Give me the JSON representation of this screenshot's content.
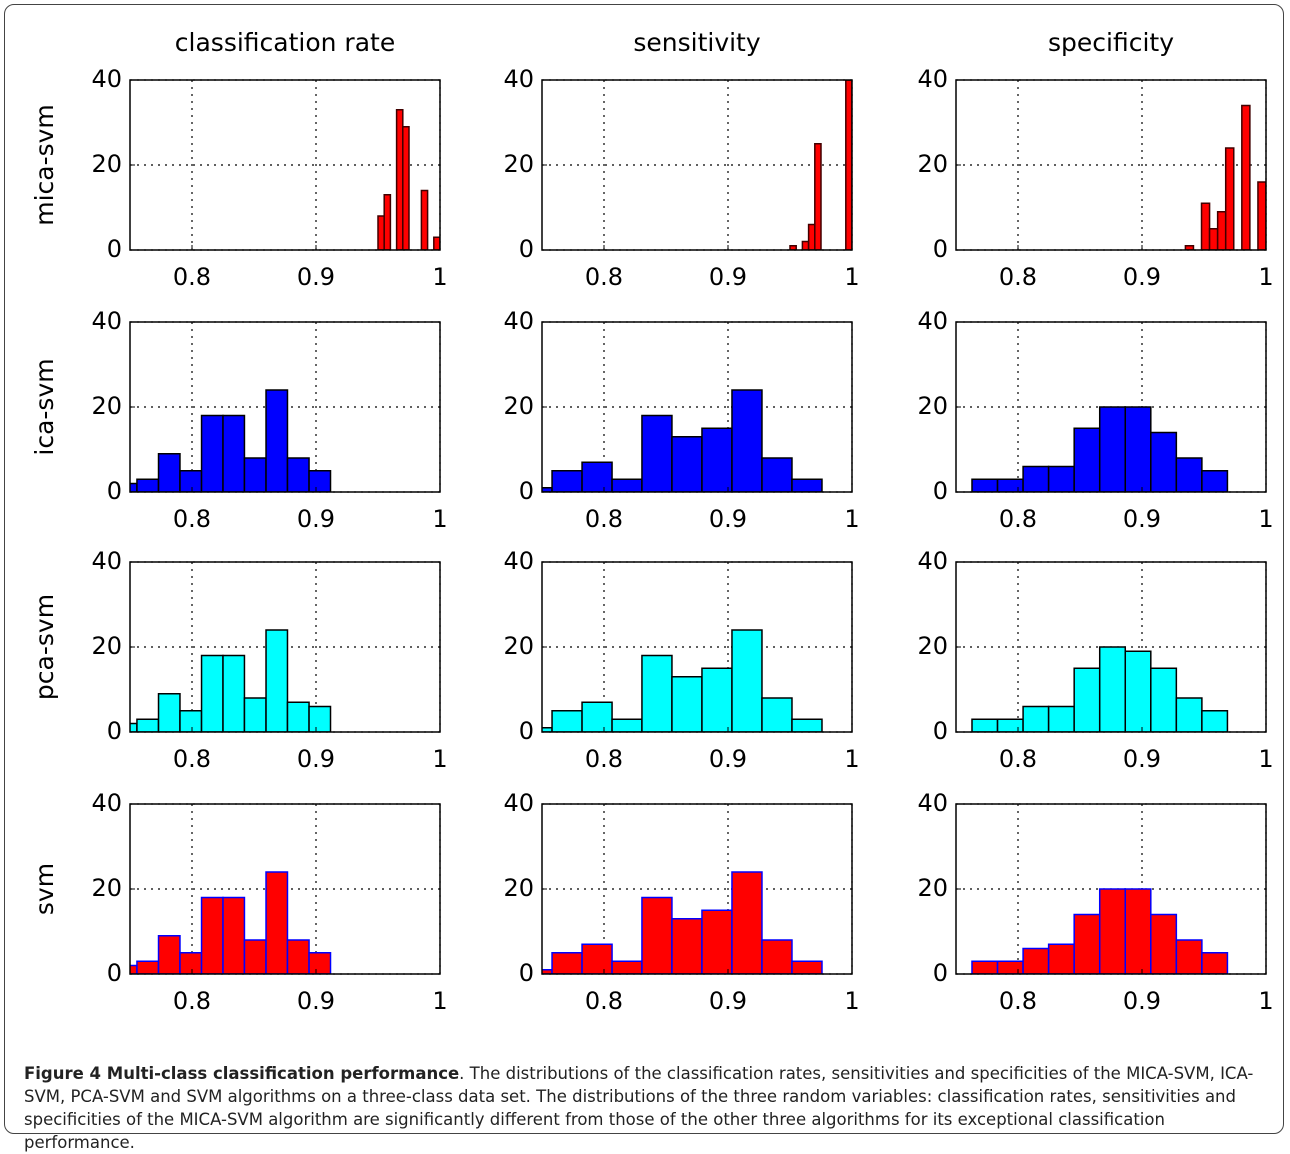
{
  "chart_data": [
    {
      "type": "histogram",
      "title": "classification rate",
      "ylabel": "mica-svm",
      "bins": [
        0.95,
        0.955,
        0.96,
        0.965,
        0.97,
        0.975,
        0.98,
        0.985,
        0.99,
        0.995,
        1.0
      ],
      "counts": [
        8,
        13,
        0,
        33,
        29,
        0,
        0,
        14,
        0,
        3
      ],
      "color": "#ff0000",
      "edgecolor": "#400000",
      "xlim": [
        0.75,
        1
      ],
      "ylim": [
        0,
        40
      ],
      "xticks": [
        0.8,
        0.9,
        1
      ],
      "yticks": [
        0,
        20,
        40
      ],
      "grid": true
    },
    {
      "type": "histogram",
      "title": "sensitivity",
      "bins": [
        0.95,
        0.955,
        0.96,
        0.965,
        0.97,
        0.975,
        0.98,
        0.985,
        0.99,
        0.995,
        1.0
      ],
      "counts": [
        1,
        0,
        2,
        6,
        25,
        0,
        0,
        0,
        0,
        40
      ],
      "color": "#ff0000",
      "edgecolor": "#400000",
      "xlim": [
        0.75,
        1
      ],
      "ylim": [
        0,
        40
      ],
      "xticks": [
        0.8,
        0.9,
        1
      ],
      "yticks": [
        0,
        20,
        40
      ],
      "grid": true
    },
    {
      "type": "histogram",
      "title": "specificity",
      "bins": [
        0.935,
        0.9415,
        0.948,
        0.9545,
        0.961,
        0.9675,
        0.974,
        0.9805,
        0.987,
        0.9935,
        1.0
      ],
      "counts": [
        1,
        0,
        11,
        5,
        9,
        24,
        0,
        34,
        0,
        16
      ],
      "color": "#ff0000",
      "edgecolor": "#400000",
      "xlim": [
        0.75,
        1
      ],
      "ylim": [
        0,
        40
      ],
      "xticks": [
        0.8,
        0.9,
        1
      ],
      "yticks": [
        0,
        20,
        40
      ],
      "grid": true
    },
    {
      "type": "histogram",
      "ylabel": "ica-svm",
      "bins": [
        0.7383,
        0.7556,
        0.773,
        0.7903,
        0.8077,
        0.825,
        0.8423,
        0.8597,
        0.877,
        0.8944,
        0.9117
      ],
      "counts": [
        2,
        3,
        9,
        5,
        18,
        18,
        8,
        24,
        8,
        5
      ],
      "color": "#0000ff",
      "edgecolor": "#000000",
      "xlim": [
        0.75,
        1
      ],
      "ylim": [
        0,
        40
      ],
      "xticks": [
        0.8,
        0.9,
        1
      ],
      "yticks": [
        0,
        20,
        40
      ],
      "grid": true
    },
    {
      "type": "histogram",
      "bins": [
        0.7339,
        0.7581,
        0.7823,
        0.8065,
        0.8306,
        0.8548,
        0.879,
        0.9032,
        0.9274,
        0.9516,
        0.9758
      ],
      "counts": [
        1,
        5,
        7,
        3,
        18,
        13,
        15,
        24,
        8,
        3
      ],
      "color": "#0000ff",
      "edgecolor": "#000000",
      "xlim": [
        0.75,
        1
      ],
      "ylim": [
        0,
        40
      ],
      "xticks": [
        0.8,
        0.9,
        1
      ],
      "yticks": [
        0,
        20,
        40
      ],
      "grid": true
    },
    {
      "type": "histogram",
      "bins": [
        0.7629,
        0.7835,
        0.8041,
        0.8247,
        0.8453,
        0.8659,
        0.8865,
        0.9071,
        0.9277,
        0.9483,
        0.9689
      ],
      "counts": [
        3,
        3,
        6,
        6,
        15,
        20,
        20,
        14,
        8,
        5
      ],
      "color": "#0000ff",
      "edgecolor": "#000000",
      "xlim": [
        0.75,
        1
      ],
      "ylim": [
        0,
        40
      ],
      "xticks": [
        0.8,
        0.9,
        1
      ],
      "yticks": [
        0,
        20,
        40
      ],
      "grid": true
    },
    {
      "type": "histogram",
      "ylabel": "pca-svm",
      "bins": [
        0.7383,
        0.7556,
        0.773,
        0.7903,
        0.8077,
        0.825,
        0.8423,
        0.8597,
        0.877,
        0.8944,
        0.9117
      ],
      "counts": [
        2,
        3,
        9,
        5,
        18,
        18,
        8,
        24,
        7,
        6
      ],
      "color": "#00ffff",
      "edgecolor": "#000000",
      "xlim": [
        0.75,
        1
      ],
      "ylim": [
        0,
        40
      ],
      "xticks": [
        0.8,
        0.9,
        1
      ],
      "yticks": [
        0,
        20,
        40
      ],
      "grid": true
    },
    {
      "type": "histogram",
      "bins": [
        0.7339,
        0.7581,
        0.7823,
        0.8065,
        0.8306,
        0.8548,
        0.879,
        0.9032,
        0.9274,
        0.9516,
        0.9758
      ],
      "counts": [
        1,
        5,
        7,
        3,
        18,
        13,
        15,
        24,
        8,
        3
      ],
      "color": "#00ffff",
      "edgecolor": "#000000",
      "xlim": [
        0.75,
        1
      ],
      "ylim": [
        0,
        40
      ],
      "xticks": [
        0.8,
        0.9,
        1
      ],
      "yticks": [
        0,
        20,
        40
      ],
      "grid": true
    },
    {
      "type": "histogram",
      "bins": [
        0.7629,
        0.7835,
        0.8041,
        0.8247,
        0.8453,
        0.8659,
        0.8865,
        0.9071,
        0.9277,
        0.9483,
        0.9689
      ],
      "counts": [
        3,
        3,
        6,
        6,
        15,
        20,
        19,
        15,
        8,
        5
      ],
      "color": "#00ffff",
      "edgecolor": "#000000",
      "xlim": [
        0.75,
        1
      ],
      "ylim": [
        0,
        40
      ],
      "xticks": [
        0.8,
        0.9,
        1
      ],
      "yticks": [
        0,
        20,
        40
      ],
      "grid": true
    },
    {
      "type": "histogram",
      "ylabel": "svm",
      "bins": [
        0.7383,
        0.7556,
        0.773,
        0.7903,
        0.8077,
        0.825,
        0.8423,
        0.8597,
        0.877,
        0.8944,
        0.9117
      ],
      "counts": [
        2,
        3,
        9,
        5,
        18,
        18,
        8,
        24,
        8,
        5
      ],
      "color": "#ff0000",
      "edgecolor": "#0000ff",
      "xlim": [
        0.75,
        1
      ],
      "ylim": [
        0,
        40
      ],
      "xticks": [
        0.8,
        0.9,
        1
      ],
      "yticks": [
        0,
        20,
        40
      ],
      "grid": true
    },
    {
      "type": "histogram",
      "bins": [
        0.7339,
        0.7581,
        0.7823,
        0.8065,
        0.8306,
        0.8548,
        0.879,
        0.9032,
        0.9274,
        0.9516,
        0.9758
      ],
      "counts": [
        1,
        5,
        7,
        3,
        18,
        13,
        15,
        24,
        8,
        3
      ],
      "color": "#ff0000",
      "edgecolor": "#0000ff",
      "xlim": [
        0.75,
        1
      ],
      "ylim": [
        0,
        40
      ],
      "xticks": [
        0.8,
        0.9,
        1
      ],
      "yticks": [
        0,
        20,
        40
      ],
      "grid": true
    },
    {
      "type": "histogram",
      "bins": [
        0.7629,
        0.7835,
        0.8041,
        0.8247,
        0.8453,
        0.8659,
        0.8865,
        0.9071,
        0.9277,
        0.9483,
        0.9689
      ],
      "counts": [
        3,
        3,
        6,
        7,
        14,
        20,
        20,
        14,
        8,
        5
      ],
      "color": "#ff0000",
      "edgecolor": "#0000ff",
      "xlim": [
        0.75,
        1
      ],
      "ylim": [
        0,
        40
      ],
      "xticks": [
        0.8,
        0.9,
        1
      ],
      "yticks": [
        0,
        20,
        40
      ],
      "grid": true
    }
  ],
  "caption": {
    "label": "Figure 4 Multi-class classification performance",
    "text": ". The distributions of the classification rates, sensitivities and specificities of the MICA-SVM, ICA-SVM, PCA-SVM and SVM algorithms on a three-class data set. The distributions of the three random variables: classification rates, sensitivities and specificities of the MICA-SVM algorithm are significantly different from those of the other three algorithms for its exceptional classification performance."
  }
}
